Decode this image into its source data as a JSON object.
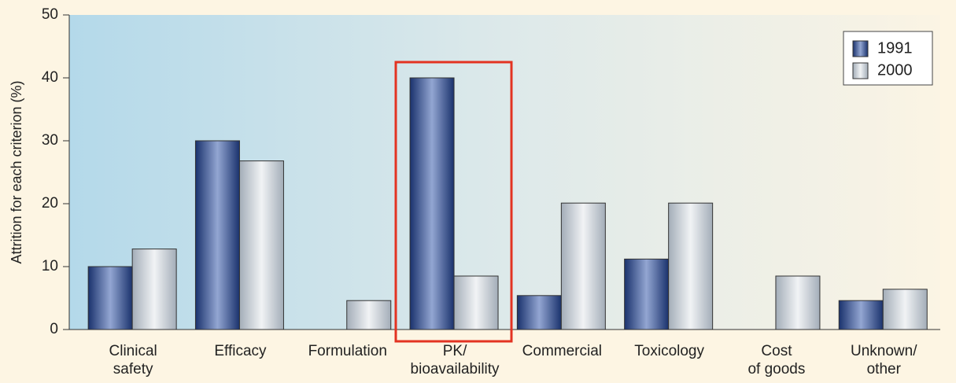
{
  "chart_data": {
    "type": "bar",
    "y_label": "Attrition for each criterion (%)",
    "categories": [
      "Clinical\nsafety",
      "Efficacy",
      "Formulation",
      "PK/\nbioavailability",
      "Commercial",
      "Toxicology",
      "Cost\nof goods",
      "Unknown/\nother"
    ],
    "series": [
      {
        "name": "1991",
        "color": "#23417f",
        "values": [
          10,
          30,
          null,
          40,
          5.4,
          11.2,
          null,
          4.6
        ]
      },
      {
        "name": "2000",
        "color": "#b7c0c9",
        "values": [
          12.8,
          26.8,
          4.6,
          8.5,
          20.1,
          20.1,
          8.5,
          6.4
        ]
      }
    ],
    "ylim": [
      0,
      50
    ],
    "yticks": [
      0,
      10,
      20,
      30,
      40,
      50
    ],
    "legend": "upper right"
  }
}
